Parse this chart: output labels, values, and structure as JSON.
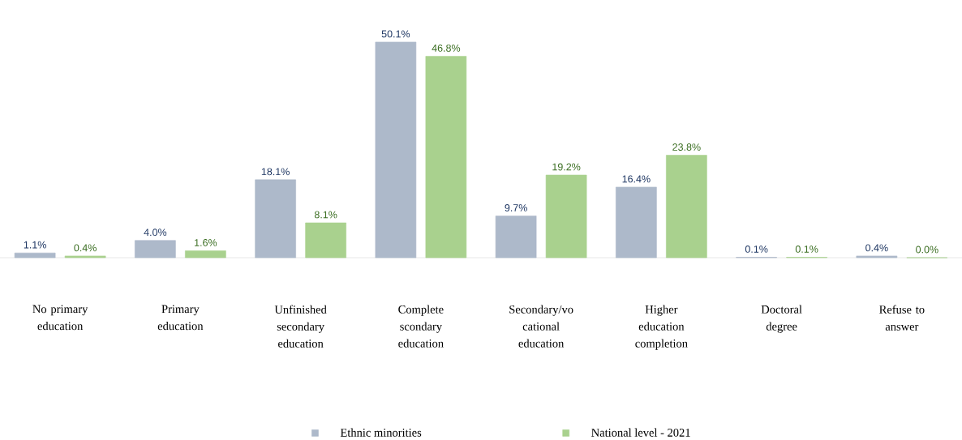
{
  "chart_data": {
    "type": "bar",
    "categories": [
      "No primary education",
      "Primary education",
      "Unfinished secondary education",
      "Complete scondary education",
      "Secondary/vo cational education",
      "Higher education completion",
      "Doctoral degree",
      "Refuse to answer"
    ],
    "series": [
      {
        "name": "Ethnic minorities",
        "color": "#adb9ca",
        "values": [
          1.1,
          4.0,
          18.1,
          50.1,
          9.7,
          16.4,
          0.1,
          0.4
        ],
        "value_labels": [
          "1.1%",
          "4.0%",
          "18.1%",
          "50.1%",
          "9.7%",
          "16.4%",
          "0.1%",
          "0.4%"
        ]
      },
      {
        "name": "National level - 2021",
        "color": "#a9d18e",
        "values": [
          0.4,
          1.6,
          8.1,
          46.8,
          19.2,
          23.8,
          0.1,
          0.0
        ],
        "value_labels": [
          "0.4%",
          "1.6%",
          "8.1%",
          "46.8%",
          "19.2%",
          "23.8%",
          "0.1%",
          "0.0%"
        ]
      }
    ],
    "legend": "bottom"
  }
}
